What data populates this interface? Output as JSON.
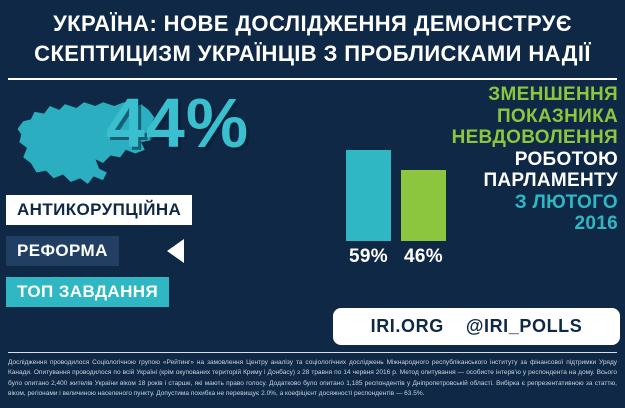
{
  "colors": {
    "background": "#0E2846",
    "teal": "#2FB7C4",
    "green": "#8CC63E",
    "white": "#FFFFFF",
    "reform_bar": "#203F63"
  },
  "header": {
    "title_lines": [
      "УКРАЇНА: НОВЕ ДОСЛІДЖЕННЯ ДЕМОНСТРУЄ",
      "СКЕПТИЦИЗМ УКРАЇНЦІВ З ПРОБЛИСКАМИ НАДІЇ"
    ]
  },
  "left_panel": {
    "map_icon": "ukraine-map-silhouette",
    "stat": "44%",
    "labels": [
      "АНТИКОРУПЦІЙНА",
      "РЕФОРМА",
      "ТОП ЗАВДАННЯ"
    ]
  },
  "right_panel": {
    "green_lines": [
      "ЗМЕНШЕННЯ",
      "ПОКАЗНИКА",
      "НЕВДОВОЛЕННЯ"
    ],
    "white_lines": [
      "РОБОТОЮ",
      "ПАРЛАМЕНТУ"
    ],
    "teal_lines": [
      "З ЛЮТОГО",
      "2016"
    ]
  },
  "chart_data": {
    "type": "bar",
    "title": "Зменшення показника невдоволення роботою парламенту з лютого 2016",
    "values": [
      59,
      46
    ],
    "labels": [
      "59%",
      "46%"
    ],
    "colors": [
      "#2FB7C4",
      "#8CC63E"
    ],
    "ylim": [
      0,
      60
    ],
    "legend": "none",
    "grid": false
  },
  "badge": {
    "site": "IRI.ORG",
    "handle": "@IRI_POLLS"
  },
  "fineprint": {
    "text": "Дослідження проводилося Соціологічною групою «Рейтинг» на замовлення Центру аналізу та соціологічних досліджень Міжнародного республіканського інституту за фінансової підтримки Уряду Канади. Опитування проводилося по всій Україні (крім окупованих територій Криму і Донбасу) з 28 травня по 14 червня 2016 р. Метод опитування — особисте інтерв’ю у респондента на дому. Всього було опитано 2,400 жителів України віком 18 років і старше, які мають право голосу. Додатково було опитано 1,185 респондентів у Дніпропетровській області. Вибірка є репрезентативною за статтю, віком, регіонами і величиною населеного пункту. Допустима похибка не перевищує 2.0%, а коефіцієнт досяжності респондентів — 63.5%."
  }
}
